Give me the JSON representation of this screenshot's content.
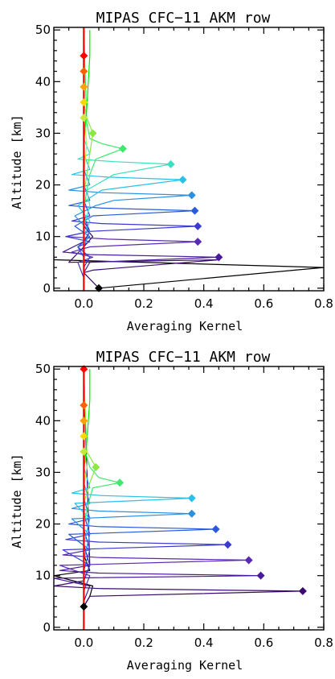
{
  "chart_data": [
    {
      "type": "line",
      "title": "MIPAS CFC−11 AKM row",
      "xlabel": "Averaging Kernel",
      "ylabel": "Altitude [km]",
      "xlim": [
        -0.1,
        0.8
      ],
      "ylim": [
        -0.5,
        50.5
      ],
      "xticks": [
        "0.0",
        "0.2",
        "0.4",
        "0.6",
        "0.8"
      ],
      "xtick_values": [
        0.0,
        0.2,
        0.4,
        0.6,
        0.8
      ],
      "yticks": [
        "0",
        "10",
        "20",
        "30",
        "40",
        "50"
      ],
      "ytick_values": [
        0,
        10,
        20,
        30,
        40,
        50
      ],
      "zero_line_color": "#ff0000",
      "series": [
        {
          "color": "#000000",
          "peak": [
            0.05,
            0
          ],
          "points": [
            [
              0.05,
              0
            ],
            [
              0.8,
              4
            ],
            [
              -0.1,
              5.5
            ],
            [
              -0.1,
              6
            ]
          ]
        },
        {
          "color": "#3a0a6e",
          "points": [
            [
              0.05,
              0
            ],
            [
              0.0,
              3
            ],
            [
              0.03,
              3.5
            ],
            [
              0.45,
              5.5
            ],
            [
              -0.05,
              5
            ],
            [
              0.0,
              8
            ],
            [
              0.03,
              10
            ],
            [
              0.0,
              12
            ],
            [
              0.0,
              50
            ]
          ]
        },
        {
          "color": "#4b1a9a",
          "peak": [
            0.45,
            6
          ],
          "points": [
            [
              0.0,
              1
            ],
            [
              0.0,
              3
            ],
            [
              0.02,
              5
            ],
            [
              0.45,
              6
            ],
            [
              0.02,
              6.5
            ],
            [
              -0.07,
              7
            ],
            [
              0.0,
              9
            ],
            [
              0.02,
              11
            ],
            [
              0.0,
              13
            ],
            [
              0.0,
              50
            ]
          ]
        },
        {
          "color": "#5b2ab4",
          "peak": [
            0.38,
            9
          ],
          "points": [
            [
              0.0,
              2
            ],
            [
              -0.02,
              5
            ],
            [
              0.03,
              6
            ],
            [
              -0.04,
              7
            ],
            [
              0.02,
              8
            ],
            [
              0.38,
              9
            ],
            [
              0.08,
              9.5
            ],
            [
              -0.06,
              10
            ],
            [
              0.02,
              11
            ],
            [
              0.0,
              14
            ],
            [
              0.0,
              50
            ]
          ]
        },
        {
          "color": "#3b3bd0",
          "peak": [
            0.38,
            12
          ],
          "points": [
            [
              0.0,
              4
            ],
            [
              0.02,
              6
            ],
            [
              -0.02,
              8
            ],
            [
              0.02,
              9
            ],
            [
              -0.06,
              10
            ],
            [
              0.02,
              11
            ],
            [
              0.38,
              12
            ],
            [
              0.06,
              12.5
            ],
            [
              -0.04,
              13
            ],
            [
              0.02,
              14
            ],
            [
              0.0,
              17
            ],
            [
              0.0,
              50
            ]
          ]
        },
        {
          "color": "#2b5bdc",
          "peak": [
            0.37,
            15
          ],
          "points": [
            [
              0.0,
              6
            ],
            [
              -0.02,
              8
            ],
            [
              0.02,
              10
            ],
            [
              -0.03,
              12
            ],
            [
              0.03,
              14
            ],
            [
              0.37,
              15
            ],
            [
              0.06,
              15.5
            ],
            [
              -0.05,
              16
            ],
            [
              0.02,
              17
            ],
            [
              0.0,
              20
            ],
            [
              0.0,
              50
            ]
          ]
        },
        {
          "color": "#2b90e0",
          "peak": [
            0.36,
            18
          ],
          "points": [
            [
              0.0,
              8
            ],
            [
              0.02,
              11
            ],
            [
              -0.03,
              14
            ],
            [
              0.04,
              16
            ],
            [
              0.1,
              17
            ],
            [
              0.36,
              18
            ],
            [
              0.06,
              18.5
            ],
            [
              -0.05,
              19
            ],
            [
              0.02,
              20
            ],
            [
              0.0,
              23
            ],
            [
              0.0,
              50
            ]
          ]
        },
        {
          "color": "#2bc0e8",
          "peak": [
            0.33,
            21
          ],
          "points": [
            [
              0.0,
              10
            ],
            [
              0.02,
              13
            ],
            [
              -0.02,
              16
            ],
            [
              0.06,
              19
            ],
            [
              0.33,
              21
            ],
            [
              0.08,
              21.5
            ],
            [
              -0.04,
              22
            ],
            [
              0.02,
              23
            ],
            [
              0.0,
              26
            ],
            [
              0.0,
              50
            ]
          ]
        },
        {
          "color": "#3be0c0",
          "peak": [
            0.29,
            24
          ],
          "points": [
            [
              0.0,
              12
            ],
            [
              0.02,
              16
            ],
            [
              0.01,
              19
            ],
            [
              0.1,
              22
            ],
            [
              0.29,
              24
            ],
            [
              0.1,
              24.5
            ],
            [
              -0.02,
              25
            ],
            [
              0.02,
              26
            ],
            [
              0.0,
              29
            ],
            [
              0.0,
              50
            ]
          ]
        },
        {
          "color": "#40e870",
          "peak": [
            0.13,
            27
          ],
          "points": [
            [
              0.0,
              15
            ],
            [
              0.01,
              19
            ],
            [
              0.02,
              22
            ],
            [
              0.04,
              25
            ],
            [
              0.13,
              27
            ],
            [
              0.06,
              28
            ],
            [
              0.02,
              29
            ],
            [
              0.01,
              32
            ],
            [
              0.0,
              50
            ]
          ]
        },
        {
          "color": "#8ae840",
          "peak": [
            0.03,
            30
          ],
          "points": [
            [
              0.0,
              18
            ],
            [
              0.01,
              22
            ],
            [
              0.02,
              26
            ],
            [
              0.03,
              30
            ],
            [
              0.01,
              33
            ],
            [
              0.0,
              36
            ],
            [
              0.0,
              50
            ]
          ]
        },
        {
          "color": "#c8e840",
          "peak": [
            0.0,
            33
          ],
          "points": [
            [
              0.0,
              22
            ],
            [
              0.01,
              28
            ],
            [
              0.0,
              33
            ],
            [
              0.0,
              50
            ]
          ]
        },
        {
          "color": "#ffd700",
          "peak": [
            0.0,
            36
          ],
          "points": []
        },
        {
          "color": "#ffa000",
          "peak": [
            0.0,
            39
          ],
          "points": []
        },
        {
          "color": "#ff6000",
          "peak": [
            0.0,
            42
          ],
          "points": []
        },
        {
          "color": "#ff0000",
          "peak": [
            0.0,
            45
          ],
          "points": []
        },
        {
          "color": "#00e800",
          "points": [
            [
              0.0,
              28
            ],
            [
              0.01,
              35
            ],
            [
              0.02,
              45
            ],
            [
              0.02,
              50
            ]
          ]
        }
      ]
    },
    {
      "type": "line",
      "title": "MIPAS CFC−11 AKM row",
      "xlabel": "Averaging Kernel",
      "ylabel": "Altitude [km]",
      "xlim": [
        -0.1,
        0.8
      ],
      "ylim": [
        -0.5,
        50.5
      ],
      "xticks": [
        "0.0",
        "0.2",
        "0.4",
        "0.6",
        "0.8"
      ],
      "xtick_values": [
        0.0,
        0.2,
        0.4,
        0.6,
        0.8
      ],
      "yticks": [
        "0",
        "10",
        "20",
        "30",
        "40",
        "50"
      ],
      "ytick_values": [
        0,
        10,
        20,
        30,
        40,
        50
      ],
      "zero_line_color": "#ff0000",
      "series": [
        {
          "color": "#000000",
          "peak": [
            0.0,
            4
          ],
          "points": [
            [
              0.0,
              4
            ],
            [
              0.02,
              6
            ],
            [
              0.03,
              8
            ],
            [
              -0.1,
              10
            ],
            [
              0.02,
              11
            ],
            [
              0.0,
              14
            ],
            [
              0.0,
              50
            ]
          ]
        },
        {
          "color": "#3a0a6e",
          "peak": [
            0.73,
            7
          ],
          "points": [
            [
              0.0,
              4
            ],
            [
              0.02,
              6
            ],
            [
              0.73,
              7
            ],
            [
              0.05,
              7.5
            ],
            [
              -0.1,
              8
            ],
            [
              0.0,
              9
            ],
            [
              0.02,
              12
            ],
            [
              0.0,
              50
            ]
          ]
        },
        {
          "color": "#4b1a9a",
          "peak": [
            0.59,
            10
          ],
          "points": [
            [
              0.0,
              5
            ],
            [
              0.02,
              8
            ],
            [
              -0.1,
              9.5
            ],
            [
              0.59,
              10
            ],
            [
              0.05,
              10.5
            ],
            [
              -0.08,
              11
            ],
            [
              0.02,
              12
            ],
            [
              0.0,
              16
            ],
            [
              0.0,
              50
            ]
          ]
        },
        {
          "color": "#5b2ab4",
          "peak": [
            0.55,
            13
          ],
          "points": [
            [
              0.0,
              7
            ],
            [
              0.02,
              10
            ],
            [
              -0.08,
              12
            ],
            [
              0.55,
              13
            ],
            [
              0.05,
              13.5
            ],
            [
              -0.07,
              14
            ],
            [
              0.02,
              15
            ],
            [
              0.0,
              19
            ],
            [
              0.0,
              50
            ]
          ]
        },
        {
          "color": "#3b3bd0",
          "peak": [
            0.48,
            16
          ],
          "points": [
            [
              0.0,
              9
            ],
            [
              0.02,
              12
            ],
            [
              -0.07,
              15
            ],
            [
              0.48,
              16
            ],
            [
              0.05,
              16.5
            ],
            [
              -0.06,
              17
            ],
            [
              0.02,
              18
            ],
            [
              0.0,
              22
            ],
            [
              0.0,
              50
            ]
          ]
        },
        {
          "color": "#2b5bdc",
          "peak": [
            0.44,
            19
          ],
          "points": [
            [
              0.0,
              11
            ],
            [
              0.02,
              15
            ],
            [
              -0.05,
              18
            ],
            [
              0.44,
              19
            ],
            [
              0.05,
              19.5
            ],
            [
              -0.05,
              20
            ],
            [
              0.02,
              21
            ],
            [
              0.0,
              25
            ],
            [
              0.0,
              50
            ]
          ]
        },
        {
          "color": "#2b90e0",
          "peak": [
            0.36,
            22
          ],
          "points": [
            [
              0.0,
              13
            ],
            [
              0.02,
              18
            ],
            [
              -0.04,
              21
            ],
            [
              0.36,
              22
            ],
            [
              0.05,
              22.5
            ],
            [
              -0.04,
              23
            ],
            [
              0.02,
              24
            ],
            [
              0.0,
              28
            ],
            [
              0.0,
              50
            ]
          ]
        },
        {
          "color": "#2bc0e8",
          "peak": [
            0.36,
            25
          ],
          "points": [
            [
              0.0,
              16
            ],
            [
              0.02,
              21
            ],
            [
              -0.03,
              24
            ],
            [
              0.36,
              25
            ],
            [
              0.06,
              25.5
            ],
            [
              -0.04,
              26
            ],
            [
              0.02,
              27
            ],
            [
              0.0,
              31
            ],
            [
              0.0,
              50
            ]
          ]
        },
        {
          "color": "#40e870",
          "peak": [
            0.12,
            28
          ],
          "points": [
            [
              0.0,
              20
            ],
            [
              0.02,
              25
            ],
            [
              0.03,
              27
            ],
            [
              0.12,
              28
            ],
            [
              0.05,
              29
            ],
            [
              0.02,
              31
            ],
            [
              0.0,
              35
            ],
            [
              0.0,
              50
            ]
          ]
        },
        {
          "color": "#8ae840",
          "peak": [
            0.04,
            31
          ],
          "points": [
            [
              0.0,
              24
            ],
            [
              0.02,
              28
            ],
            [
              0.04,
              31
            ],
            [
              0.01,
              34
            ],
            [
              0.0,
              50
            ]
          ]
        },
        {
          "color": "#c8e840",
          "peak": [
            0.0,
            34
          ],
          "points": [
            [
              0.0,
              27
            ],
            [
              0.01,
              31
            ],
            [
              0.0,
              34
            ],
            [
              0.0,
              50
            ]
          ]
        },
        {
          "color": "#ffd700",
          "peak": [
            0.0,
            37
          ],
          "points": []
        },
        {
          "color": "#ffa000",
          "peak": [
            0.0,
            40
          ],
          "points": []
        },
        {
          "color": "#ff6000",
          "peak": [
            0.0,
            43
          ],
          "points": []
        },
        {
          "color": "#ff0000",
          "peak": [
            0.0,
            50
          ],
          "points": []
        },
        {
          "color": "#00e800",
          "points": [
            [
              0.0,
              30
            ],
            [
              0.01,
              36
            ],
            [
              0.02,
              44
            ],
            [
              0.02,
              50
            ]
          ]
        }
      ]
    }
  ]
}
